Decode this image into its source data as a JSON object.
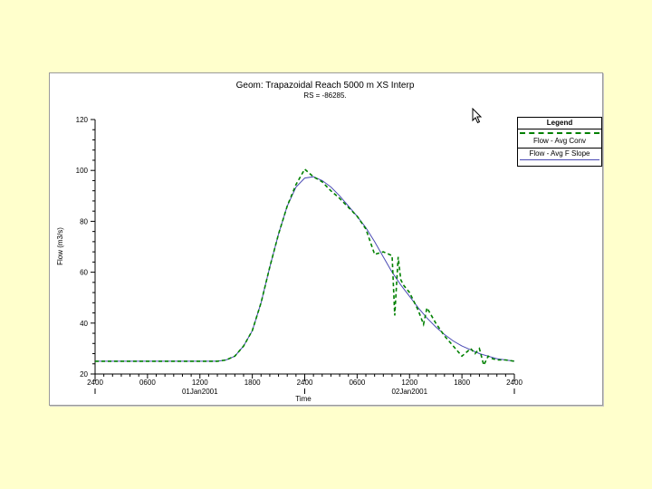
{
  "chart_data": {
    "type": "line",
    "title": "Geom: Trapazoidal Reach 5000 m XS Interp",
    "subtitle": "RS = -86285.",
    "xlabel": "Time",
    "ylabel": "Flow (m3/s)",
    "ylim": [
      20,
      120
    ],
    "xlim": [
      0,
      48
    ],
    "y_ticks": [
      20,
      40,
      60,
      80,
      100,
      120
    ],
    "x_ticks": [
      {
        "hour": 0,
        "label": "2400",
        "date": ""
      },
      {
        "hour": 6,
        "label": "0600",
        "date": ""
      },
      {
        "hour": 12,
        "label": "1200",
        "date": "01Jan2001"
      },
      {
        "hour": 18,
        "label": "1800",
        "date": ""
      },
      {
        "hour": 24,
        "label": "2400",
        "date": ""
      },
      {
        "hour": 30,
        "label": "0600",
        "date": ""
      },
      {
        "hour": 36,
        "label": "1200",
        "date": "02Jan2001"
      },
      {
        "hour": 42,
        "label": "1800",
        "date": ""
      },
      {
        "hour": 48,
        "label": "2400",
        "date": ""
      }
    ],
    "legend_title": "Legend",
    "legend_position": "top-right",
    "series": [
      {
        "name": "Flow - Avg Conv",
        "style": "dashed",
        "color": "#008000",
        "x": [
          0,
          14,
          15,
          16,
          17,
          18,
          19,
          20,
          21,
          22,
          23,
          24,
          25,
          26,
          27,
          28,
          29,
          30,
          31,
          32,
          33,
          34,
          34.3,
          34.7,
          35,
          35.3,
          36,
          37,
          37.6,
          38,
          39,
          40,
          41,
          42,
          43,
          43.5,
          44,
          44.5,
          45,
          45.5,
          46,
          47,
          48
        ],
        "y": [
          25,
          25,
          25.5,
          27,
          31,
          37,
          48,
          62,
          75,
          86,
          94.5,
          100.5,
          97.5,
          95.5,
          92,
          89,
          85.5,
          82,
          77,
          67,
          68,
          66.5,
          43,
          66,
          57,
          55,
          52,
          45,
          39.5,
          46,
          40,
          35,
          31,
          27,
          30,
          28,
          30,
          23.5,
          27,
          26,
          25.5,
          25.5,
          25
        ]
      },
      {
        "name": "Flow - Avg F Slope",
        "style": "solid",
        "color": "#4a4ab4",
        "x": [
          0,
          14,
          15,
          16,
          17,
          18,
          19,
          20,
          21,
          22,
          23,
          24,
          25,
          26,
          27,
          28,
          29,
          30,
          31,
          32,
          33,
          34,
          35,
          36,
          37,
          38,
          39,
          40,
          41,
          42,
          43,
          44,
          45,
          46,
          47,
          48
        ],
        "y": [
          25,
          25,
          25.5,
          27,
          31,
          37,
          48,
          62,
          75,
          86,
          93.5,
          97,
          97.5,
          96,
          93.5,
          90,
          86,
          82,
          77.5,
          72,
          66,
          60,
          55,
          50.5,
          46,
          42,
          38.5,
          35.5,
          33,
          31,
          29.5,
          28,
          27,
          26,
          25.5,
          25
        ]
      }
    ]
  },
  "legend": {
    "title": "Legend",
    "entries": [
      "Flow - Avg Conv",
      "Flow - Avg F Slope"
    ]
  }
}
